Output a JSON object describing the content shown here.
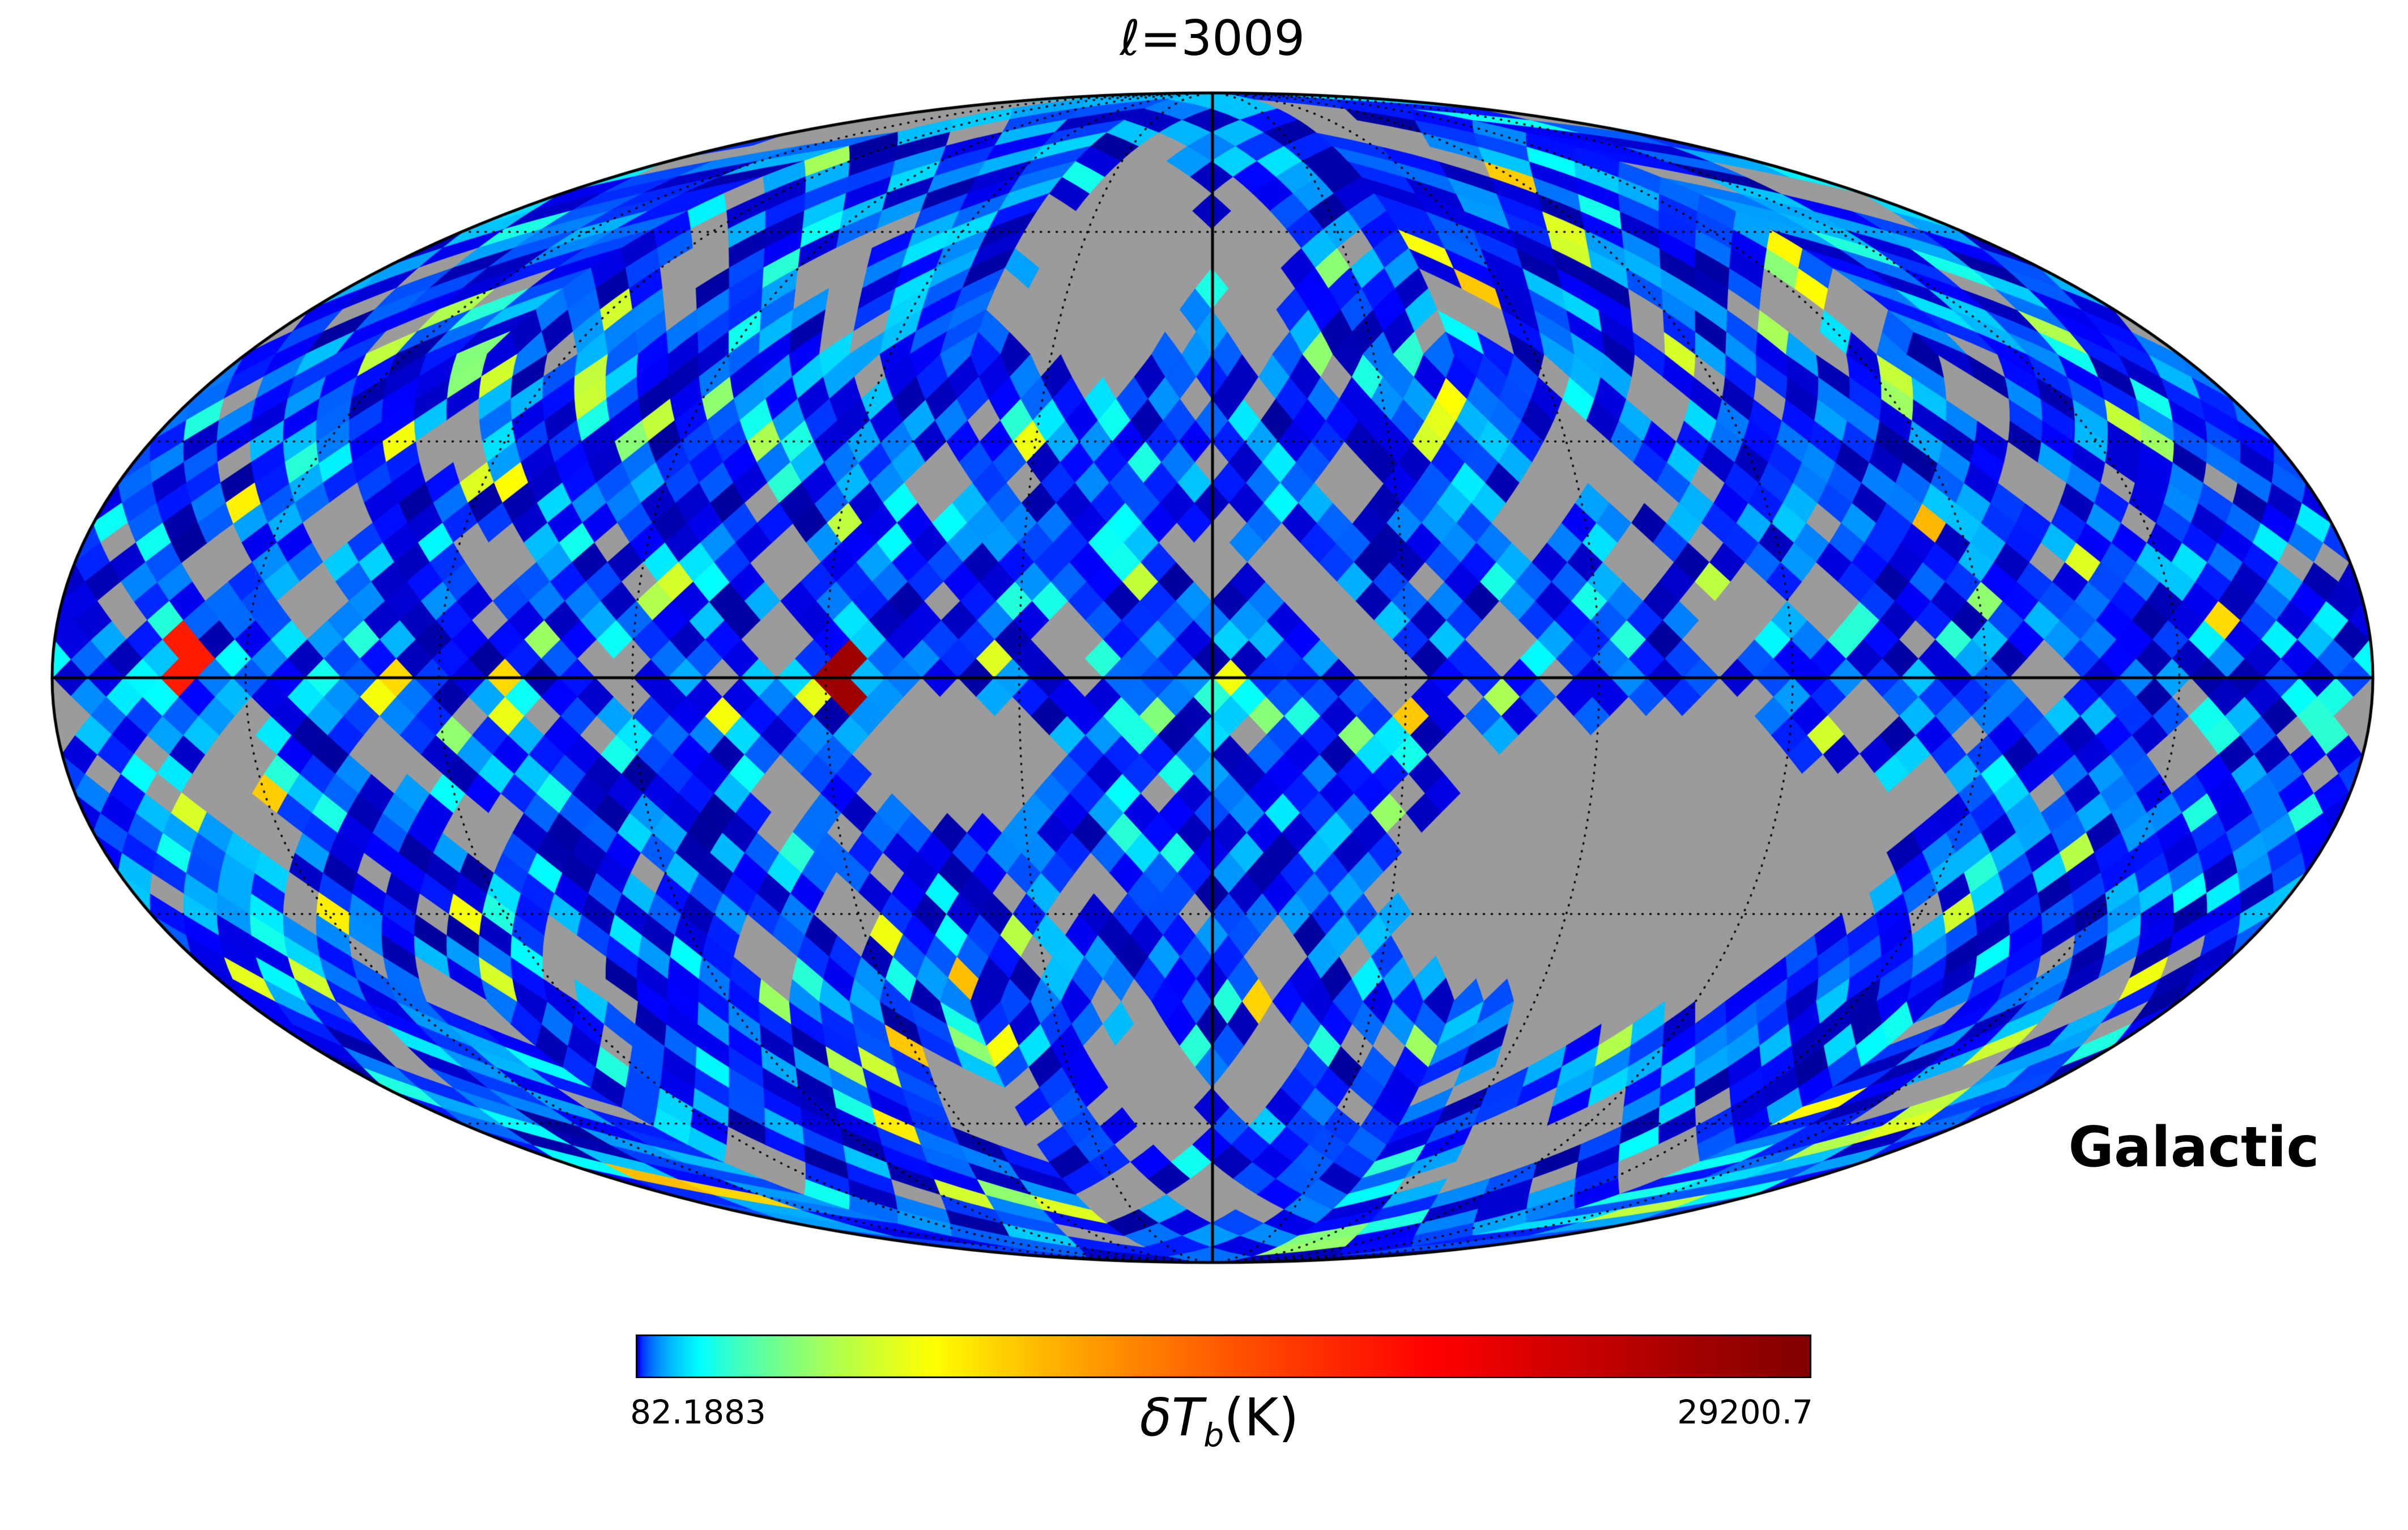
{
  "page": {
    "background": "#ffffff"
  },
  "plot": {
    "title": "ℓ=3009",
    "coordinate_label": "Galactic"
  },
  "colorbar": {
    "min_label": "82.1883",
    "max_label": "29200.7",
    "unit_prefix": "δT",
    "unit_sub": "b",
    "unit_suffix": "(K)",
    "colormap": "jet"
  },
  "chart_data": {
    "type": "heatmap",
    "subtype": "HEALPix Mollweide all-sky map",
    "title": "ℓ=3009",
    "multipole_l": 3009,
    "coordinate_system": "Galactic",
    "colorbar": {
      "label": "δT_b(K)",
      "min": 82.1883,
      "max": 29200.7,
      "colormap": "jet"
    },
    "nside": 16,
    "masked_color": "#9b9b9b",
    "masked_note": "gray pixels = masked / no data",
    "value_profile": "majority of unmasked pixels lie near the colour-scale minimum (blue and cyan); scattered green-yellow pixels; two red hot pixels on the equator west of centre",
    "hot_pixels": [
      {
        "lon_deg": -57,
        "lat_deg": 1,
        "t": 0.97,
        "note": "dark red maximum pixel"
      },
      {
        "lon_deg": -159,
        "lat_deg": 2,
        "t": 0.85,
        "note": "orange-red pixel"
      }
    ],
    "masked_regions": [
      {
        "lon_deg": 70,
        "lat_deg": -24,
        "rlon_deg": 40,
        "rlat_deg": 20,
        "note": "large south-east masked blob"
      },
      {
        "lon_deg": -22,
        "lat_deg": 58,
        "rlon_deg": 20,
        "rlat_deg": 19
      },
      {
        "lon_deg": 9,
        "lat_deg": 55,
        "rlon_deg": 9,
        "rlat_deg": 14
      },
      {
        "lon_deg": -39,
        "lat_deg": -10,
        "rlon_deg": 14,
        "rlat_deg": 9
      },
      {
        "lon_deg": -14,
        "lat_deg": -55,
        "rlon_deg": 10,
        "rlat_deg": 12
      }
    ],
    "random_mask_clump_fraction": 0.12,
    "random_mask_fine_fraction": 0.06,
    "graticule": {
      "meridian_spacing_deg": 30,
      "parallel_spacing_deg": 30,
      "line_style": "dotted",
      "equator_style": "solid",
      "central_meridian_style": "solid"
    }
  }
}
